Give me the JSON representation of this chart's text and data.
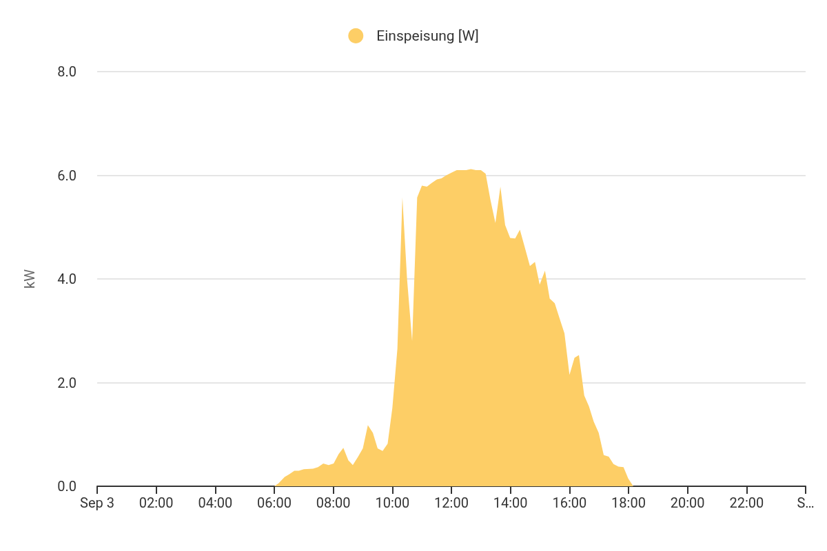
{
  "chart_data": {
    "type": "area",
    "legend": "top",
    "ylabel": "kW",
    "grid": "y",
    "marker": "none",
    "xlim": [
      0,
      24
    ],
    "xticks": [
      {
        "value": 0,
        "label": "Sep 3"
      },
      {
        "value": 2,
        "label": "02:00"
      },
      {
        "value": 4,
        "label": "04:00"
      },
      {
        "value": 6,
        "label": "06:00"
      },
      {
        "value": 8,
        "label": "08:00"
      },
      {
        "value": 10,
        "label": "10:00"
      },
      {
        "value": 12,
        "label": "12:00"
      },
      {
        "value": 14,
        "label": "14:00"
      },
      {
        "value": 16,
        "label": "16:00"
      },
      {
        "value": 18,
        "label": "18:00"
      },
      {
        "value": 20,
        "label": "20:00"
      },
      {
        "value": 22,
        "label": "22:00"
      },
      {
        "value": 24,
        "label": "S…"
      }
    ],
    "ylim": [
      0,
      8
    ],
    "yticks": [
      {
        "value": 0,
        "label": "0.0"
      },
      {
        "value": 2,
        "label": "2.0"
      },
      {
        "value": 4,
        "label": "4.0"
      },
      {
        "value": 6,
        "label": "6.0"
      },
      {
        "value": 8,
        "label": "8.0"
      }
    ],
    "series": [
      {
        "name": "Einspeisung [W]",
        "color": "#fdce66",
        "x": [
          6,
          6.15,
          6.35,
          6.5,
          6.68,
          6.83,
          7,
          7.31,
          7.48,
          7.66,
          7.84,
          8.01,
          8.18,
          8.34,
          8.51,
          8.66,
          8.84,
          9,
          9.17,
          9.34,
          9.5,
          9.67,
          9.84,
          10,
          10.17,
          10.34,
          10.5,
          10.67,
          10.84,
          11,
          11.17,
          11.33,
          11.51,
          11.66,
          11.83,
          12,
          12.18,
          12.34,
          12.5,
          12.66,
          12.83,
          13,
          13.16,
          13.32,
          13.49,
          13.66,
          13.82,
          13.99,
          14.16,
          14.32,
          14.49,
          14.66,
          14.83,
          14.99,
          15.17,
          15.33,
          15.5,
          15.67,
          15.83,
          16,
          16.17,
          16.32,
          16.5,
          16.66,
          16.82,
          16.99,
          17.16,
          17.33,
          17.49,
          17.66,
          17.83,
          17.99,
          18.16
        ],
        "values": [
          0,
          0.06,
          0.18,
          0.23,
          0.3,
          0.3,
          0.33,
          0.34,
          0.37,
          0.44,
          0.41,
          0.44,
          0.62,
          0.74,
          0.5,
          0.41,
          0.57,
          0.73,
          1.18,
          1.03,
          0.73,
          0.68,
          0.82,
          1.51,
          2.65,
          5.57,
          3.98,
          2.8,
          5.57,
          5.8,
          5.78,
          5.85,
          5.92,
          5.94,
          6,
          6.05,
          6.1,
          6.1,
          6.1,
          6.12,
          6.1,
          6.1,
          6.03,
          5.53,
          5.08,
          5.78,
          5.04,
          4.79,
          4.78,
          4.95,
          4.6,
          4.25,
          4.33,
          3.89,
          4.16,
          3.62,
          3.53,
          3.23,
          2.95,
          2.15,
          2.48,
          2.53,
          1.75,
          1.54,
          1.25,
          1.03,
          0.6,
          0.57,
          0.43,
          0.38,
          0.37,
          0.15,
          0
        ]
      }
    ]
  }
}
